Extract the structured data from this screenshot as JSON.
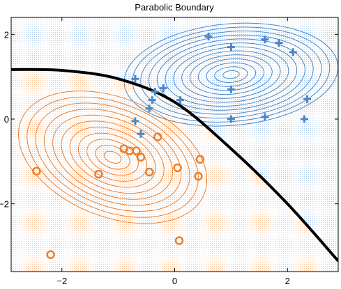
{
  "chart_data": {
    "type": "scatter",
    "title": "Parabolic Boundary",
    "xlabel": "",
    "ylabel": "",
    "xlim": [
      -2.9,
      2.9
    ],
    "ylim": [
      -3.6,
      2.4
    ],
    "xticks": [
      -2,
      0,
      2
    ],
    "yticks": [
      -2,
      0,
      2
    ],
    "grid": false,
    "legend": "none",
    "series": [
      {
        "marker": "plus",
        "color": "#4a86c8",
        "points": [
          [
            0.6,
            1.95
          ],
          [
            1.6,
            1.88
          ],
          [
            1.85,
            1.8
          ],
          [
            1.0,
            1.7
          ],
          [
            2.1,
            1.58
          ],
          [
            -0.7,
            0.95
          ],
          [
            -0.2,
            0.73
          ],
          [
            -0.35,
            0.65
          ],
          [
            1.0,
            0.7
          ],
          [
            -0.4,
            0.45
          ],
          [
            0.1,
            0.45
          ],
          [
            2.35,
            0.47
          ],
          [
            -0.45,
            0.25
          ],
          [
            -0.7,
            -0.05
          ],
          [
            1.0,
            0.0
          ],
          [
            1.6,
            0.05
          ],
          [
            2.3,
            0.0
          ],
          [
            -0.6,
            -0.35
          ]
        ]
      },
      {
        "marker": "circle",
        "color": "#ee7d2a",
        "points": [
          [
            -0.3,
            -0.42
          ],
          [
            -0.9,
            -0.7
          ],
          [
            -0.8,
            -0.75
          ],
          [
            -0.68,
            -0.75
          ],
          [
            -0.6,
            -0.9
          ],
          [
            0.45,
            -0.95
          ],
          [
            0.05,
            -1.15
          ],
          [
            -0.45,
            -1.25
          ],
          [
            -1.35,
            -1.3
          ],
          [
            -2.45,
            -1.23
          ],
          [
            0.42,
            -1.35
          ],
          [
            0.08,
            -2.87
          ],
          [
            -2.2,
            -3.2
          ]
        ]
      }
    ],
    "contours": [
      {
        "color": "#4a86c8",
        "center": [
          1.0,
          1.05
        ],
        "semi_axes": [
          1.9,
          1.2
        ],
        "rotation_deg": -5,
        "levels": 13
      },
      {
        "color": "#ee7d2a",
        "center": [
          -1.1,
          -0.9
        ],
        "semi_axes": [
          1.75,
          1.4
        ],
        "rotation_deg": 22,
        "levels": 11
      }
    ],
    "boundary": {
      "type": "parabola",
      "points": [
        [
          -2.9,
          1.17
        ],
        [
          -2.0,
          1.15
        ],
        [
          -1.0,
          0.95
        ],
        [
          0.0,
          0.4
        ],
        [
          1.0,
          -0.7
        ],
        [
          2.0,
          -2.0
        ],
        [
          2.9,
          -3.35
        ]
      ],
      "color": "#000000"
    },
    "regions": {
      "upper": "#4a86c8",
      "lower": "#ee7d2a"
    }
  }
}
